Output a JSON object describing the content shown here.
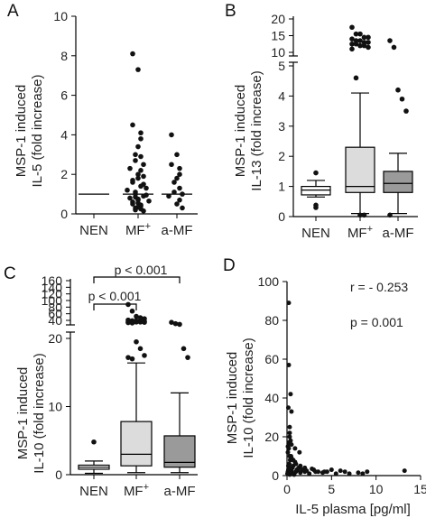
{
  "chart_data": [
    {
      "panel": "A",
      "type": "scatter",
      "categories": [
        "NEN",
        "MF⁺",
        "a-MF"
      ],
      "ylabel_1": "MSP-1 induced",
      "ylabel_2": "IL-5 (fold increase)",
      "yticks": [
        0,
        2,
        4,
        6,
        8,
        10
      ],
      "ylim": [
        0,
        10
      ],
      "medians": [
        1,
        1,
        1
      ],
      "points": [
        [
          1
        ],
        [
          8.1,
          7.3,
          4.5,
          4.1,
          3.8,
          3.4,
          3.0,
          2.9,
          2.7,
          2.5,
          2.3,
          2.2,
          2.0,
          1.9,
          1.8,
          1.7,
          1.6,
          1.5,
          1.4,
          1.3,
          1.2,
          1.1,
          1.0,
          0.95,
          0.9,
          0.85,
          0.8,
          0.75,
          0.7,
          0.65,
          0.6,
          0.55,
          0.5,
          0.45,
          0.4,
          0.35,
          0.3,
          0.25,
          0.2,
          0.15
        ],
        [
          4.0,
          3.0,
          2.5,
          2.3,
          2.0,
          1.8,
          1.6,
          1.3,
          1.1,
          1.0,
          0.9,
          0.7,
          0.5,
          0.3
        ]
      ]
    },
    {
      "panel": "B",
      "type": "box",
      "categories": [
        "NEN",
        "MF⁺",
        "a-MF"
      ],
      "ylabel_1": "MSP-1 induced",
      "ylabel_2": "IL-13 (fold increase)",
      "yticks_lower": [
        0,
        1,
        2,
        3,
        4,
        5
      ],
      "yticks_upper": [
        10,
        15,
        20
      ],
      "boxes": [
        {
          "min": 0.65,
          "q1": 0.72,
          "median": 0.88,
          "q3": 1.0,
          "max": 1.2
        },
        {
          "min": 0.1,
          "q1": 0.8,
          "median": 1.0,
          "q3": 2.3,
          "max": 4.1
        },
        {
          "min": 0.1,
          "q1": 0.8,
          "median": 1.1,
          "q3": 1.5,
          "max": 2.1
        }
      ],
      "outliers": [
        [
          1.45,
          0.38,
          0.3
        ],
        [
          17.5,
          15.5,
          15.5,
          14.5,
          14.5,
          14.0,
          13.5,
          13.5,
          13.0,
          13.0,
          12.5,
          12.5,
          12.0,
          12.0,
          11.5,
          11.0,
          4.6,
          0.05,
          0.05
        ],
        [
          13.5,
          11.5,
          4.2,
          3.9,
          3.5,
          0.05
        ]
      ]
    },
    {
      "panel": "C",
      "type": "box",
      "categories": [
        "NEN",
        "MF⁺",
        "a-MF"
      ],
      "ylabel_1": "MSP-1 induced",
      "ylabel_2": "IL-10 (fold increase)",
      "yticks_lower": [
        0,
        10,
        20
      ],
      "yticks_upper": [
        40,
        60,
        80,
        100,
        120,
        140,
        160
      ],
      "boxes": [
        {
          "min": 0.2,
          "q1": 0.8,
          "median": 1.1,
          "q3": 1.4,
          "max": 2.0
        },
        {
          "min": 0.3,
          "q1": 1.3,
          "median": 3.0,
          "q3": 7.8,
          "max": 16.4
        },
        {
          "min": 0.3,
          "q1": 1.1,
          "median": 1.8,
          "q3": 5.7,
          "max": 12.0
        }
      ],
      "outliers": [
        [
          4.8
        ],
        [
          88,
          68,
          52,
          48,
          45,
          41,
          39,
          39,
          37,
          37,
          36,
          36,
          35,
          35,
          34,
          33,
          32,
          19.5,
          18.5,
          17.5,
          17.2,
          17.0
        ],
        [
          34,
          30,
          28,
          18.5,
          17.2
        ]
      ],
      "annotations": [
        "p < 0.001",
        "p < 0.001"
      ]
    },
    {
      "panel": "D",
      "type": "scatter",
      "xlabel": "IL-5 plasma [pg/ml]",
      "ylabel_1": "MSP-1 induced",
      "ylabel_2": "IL-10 (fold increase)",
      "xlim": [
        0,
        15
      ],
      "ylim": [
        0,
        100
      ],
      "xticks": [
        0,
        5,
        10,
        15
      ],
      "yticks": [
        0,
        20,
        40,
        60,
        80,
        100
      ],
      "annotations": [
        "r = - 0.253",
        "p = 0.001"
      ],
      "x": [
        0.1,
        0.2,
        0.3,
        0.4,
        0.5,
        0.6,
        0.8,
        1.0,
        1.2,
        1.5,
        2.0,
        2.5,
        3.0,
        3.5,
        4.0,
        4.5,
        5.5,
        6.0,
        7.0,
        8.0,
        8.5,
        9.0,
        13.2,
        0.15,
        0.25,
        0.35,
        0.45,
        0.55,
        0.7,
        0.9,
        1.1,
        1.3,
        1.7,
        2.2,
        2.8,
        3.2,
        4.2,
        5.0,
        6.5,
        0.1,
        0.2,
        0.3,
        0.5,
        0.7,
        1.0,
        1.5,
        2.0,
        0.05,
        0.1,
        0.15,
        0.2,
        0.25,
        0.3,
        0.35,
        0.4,
        0.6,
        0.8,
        0.1,
        0.2,
        0.3,
        0.4,
        0.5,
        0.9,
        1.4,
        0.3,
        0.15,
        0.4,
        0.2,
        0.2,
        0.5,
        0.3
      ],
      "y": [
        1,
        2,
        3,
        1.5,
        2.5,
        4,
        1,
        2,
        3,
        1.5,
        2,
        1,
        3,
        2,
        1.5,
        2,
        1,
        2.5,
        1,
        1.5,
        1,
        2,
        2.5,
        5,
        6,
        8,
        10,
        4,
        5,
        7,
        3,
        4,
        3,
        2.5,
        3.5,
        2,
        2,
        3,
        2,
        12,
        14,
        10,
        9,
        8,
        6,
        5,
        4,
        1,
        2,
        3,
        4,
        6,
        0.5,
        1,
        2,
        1,
        0.5,
        15,
        17,
        20,
        18,
        16,
        14,
        12,
        22,
        35,
        42,
        89,
        57,
        33,
        25
      ]
    }
  ]
}
